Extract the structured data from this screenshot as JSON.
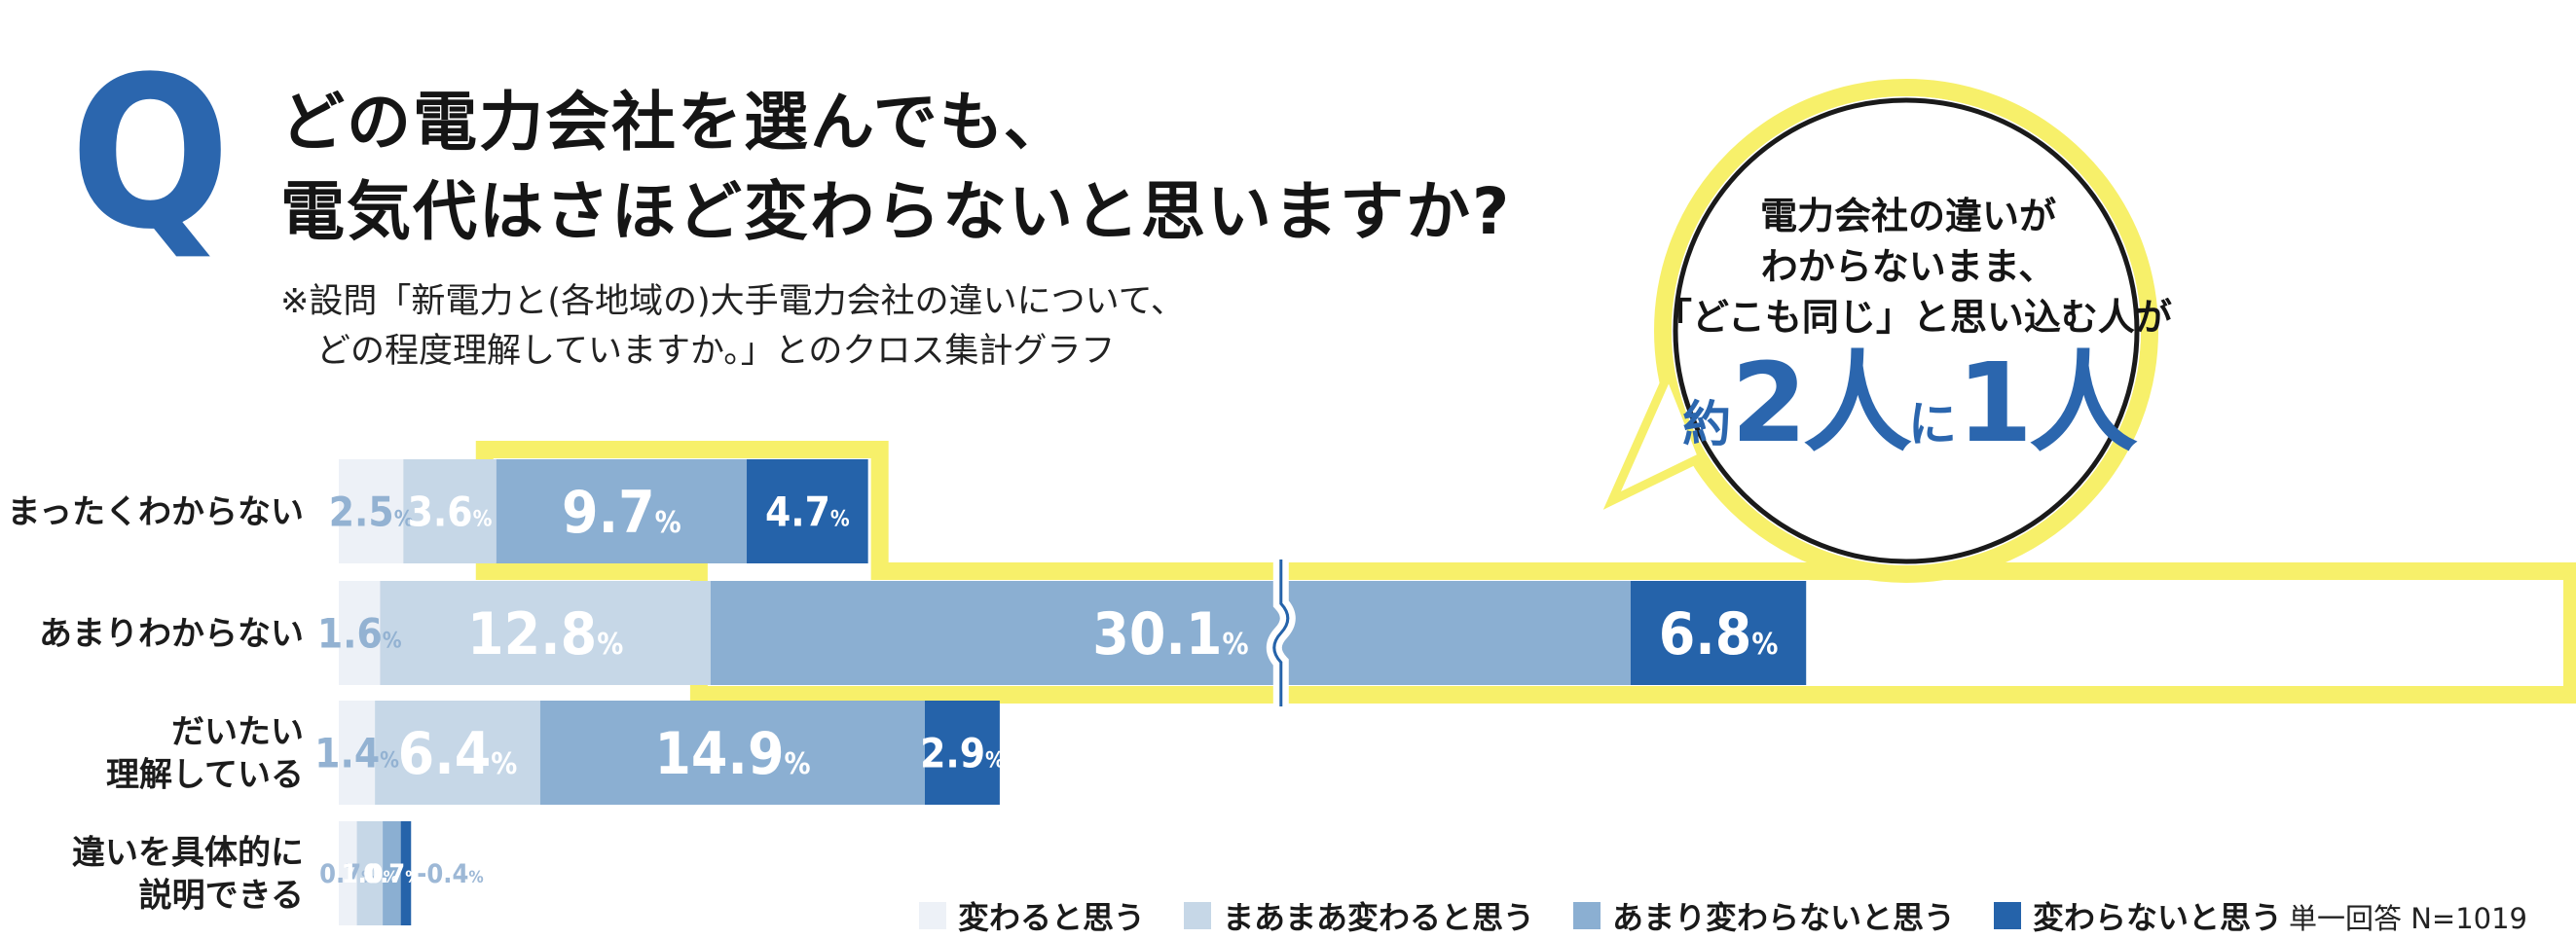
{
  "header": {
    "q_mark": "Q",
    "title_line1": "どの電力会社を選んでも、",
    "title_line2": "電気代はさほど変わらないと思いますか?",
    "note_line1": "※設問「新電力と(各地域の)大手電力会社の違いについて、",
    "note_line2": "どの程度理解していますか。」とのクロス集計グラフ"
  },
  "bubble": {
    "line1": "電力会社の違いが",
    "line2": "わからないまま、",
    "line3": "「どこも同じ」と思い込む人が",
    "prefix": "約",
    "num1": "2",
    "word1": "人",
    "mid": "に",
    "num2": "1",
    "word2": "人"
  },
  "chart_data": {
    "type": "bar",
    "orientation": "horizontal",
    "stacked": true,
    "categories": [
      [
        "まったくわからない"
      ],
      [
        "あまりわからない"
      ],
      [
        "だいたい",
        "理解している"
      ],
      [
        "違いを具体的に",
        "説明できる"
      ]
    ],
    "series": [
      {
        "name": "変わると思う",
        "color": "#edf1f7",
        "label_color": "#93b2d2",
        "values": [
          2.5,
          1.6,
          1.4,
          0.7
        ]
      },
      {
        "name": "まあまあ変わると思う",
        "color": "#c6d7e7",
        "label_color": "#ffffff",
        "values": [
          3.6,
          12.8,
          6.4,
          1.0
        ]
      },
      {
        "name": "あまり変わらないと思う",
        "color": "#8bafd2",
        "label_color": "#ffffff",
        "values": [
          9.7,
          30.1,
          14.9,
          0.7
        ]
      },
      {
        "name": "変わらないと思う",
        "color": "#2563aa",
        "label_color": "#ffffff",
        "values": [
          4.7,
          6.8,
          2.9,
          0.4
        ]
      }
    ],
    "value_suffix": "%",
    "break_value": "30.1",
    "highlight_color": "#f7f06a"
  },
  "footnote": "単一回答 N=1019"
}
